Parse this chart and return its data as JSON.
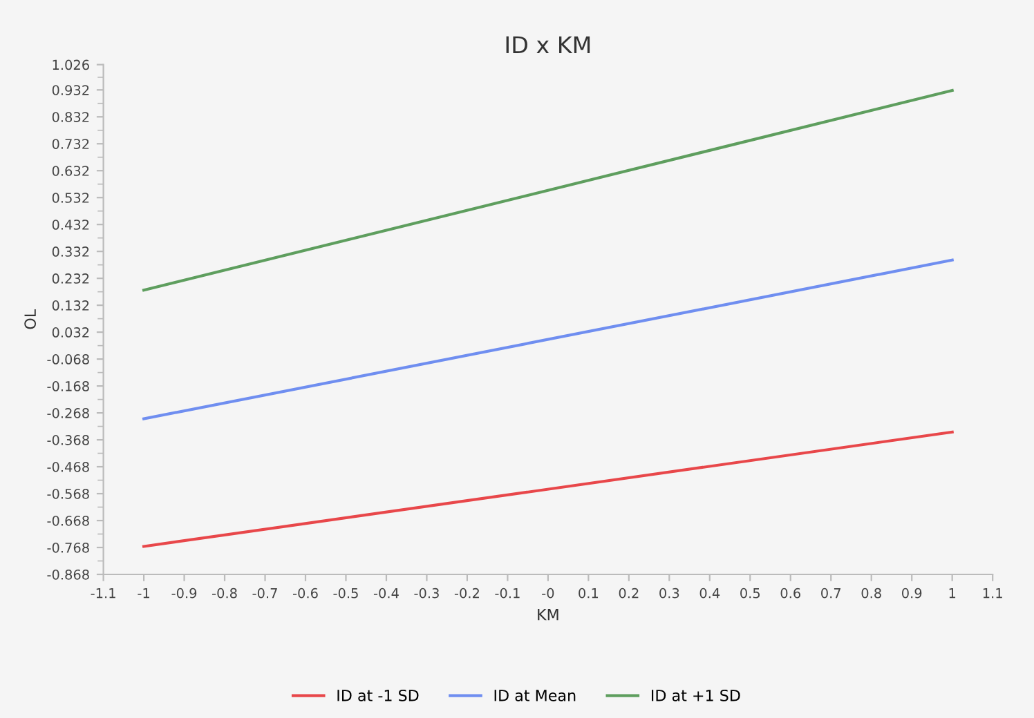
{
  "chart_data": {
    "type": "line",
    "title": "ID x KM",
    "xlabel": "KM",
    "ylabel": "OL",
    "x": [
      -1,
      1
    ],
    "series": [
      {
        "name": "ID at -1 SD",
        "color": "#e8474a",
        "values": [
          -0.764,
          -0.339
        ]
      },
      {
        "name": "ID at Mean",
        "color": "#6f8ef0",
        "values": [
          -0.29,
          0.3
        ]
      },
      {
        "name": "ID at +1 SD",
        "color": "#5e9e5e",
        "values": [
          0.188,
          0.93
        ]
      }
    ],
    "xlim": [
      -1.1,
      1.1
    ],
    "xticks": [
      -1.1,
      -1,
      -0.9,
      -0.8,
      -0.7,
      -0.6,
      -0.5,
      -0.4,
      -0.3,
      -0.2,
      -0.1,
      {
        "value": 0,
        "label": "-0"
      },
      0.1,
      0.2,
      0.3,
      0.4,
      0.5,
      0.6,
      0.7,
      0.8,
      0.9,
      1,
      1.1
    ],
    "ylim": [
      -0.868,
      1.026
    ],
    "yticks": [
      -0.868,
      -0.768,
      -0.668,
      -0.568,
      -0.468,
      -0.368,
      -0.268,
      -0.168,
      -0.068,
      0.032,
      0.132,
      0.232,
      0.332,
      0.432,
      0.532,
      0.632,
      0.732,
      0.832,
      0.932,
      1.026
    ],
    "grid": false,
    "legend": "bottom",
    "marker": "none",
    "line_style": "solid"
  }
}
